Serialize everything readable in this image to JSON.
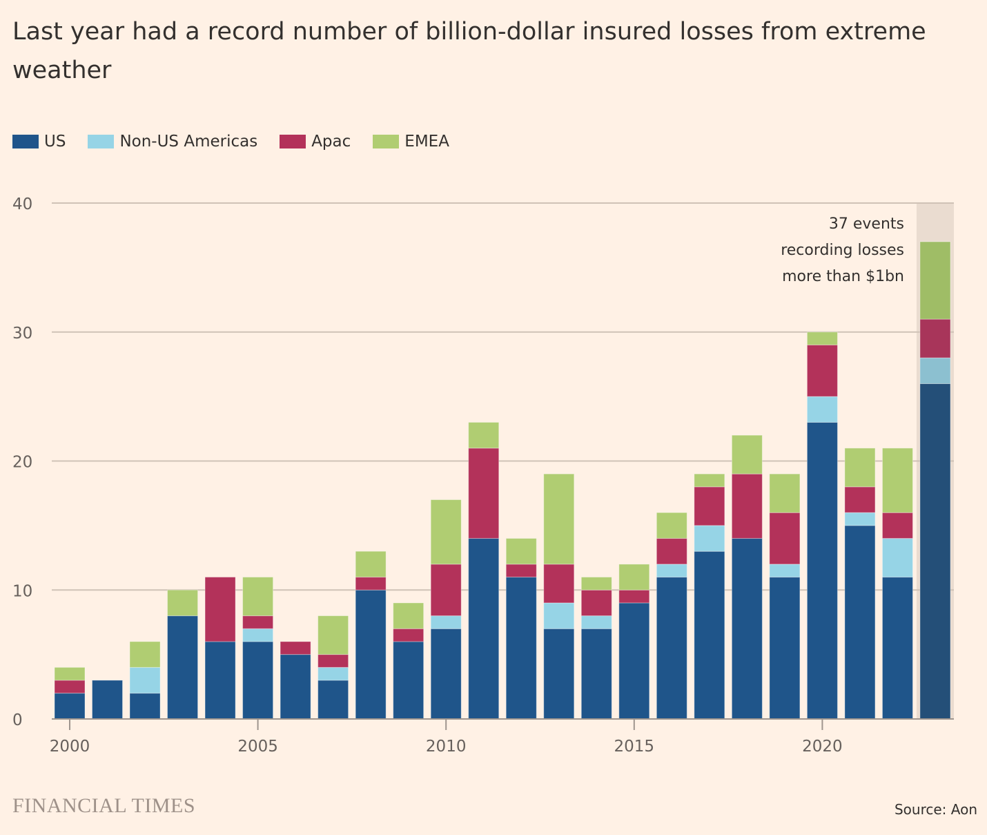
{
  "chart_data": {
    "type": "bar",
    "stacked": true,
    "title": "Last year had a record number of billion-dollar insured losses from extreme weather",
    "xlabel": "",
    "ylabel": "",
    "ylim": [
      0,
      40
    ],
    "yticks": [
      0,
      10,
      20,
      30,
      40
    ],
    "xticks": [
      "2000",
      "2005",
      "2010",
      "2015",
      "2020"
    ],
    "categories": [
      2000,
      2001,
      2002,
      2003,
      2004,
      2005,
      2006,
      2007,
      2008,
      2009,
      2010,
      2011,
      2012,
      2013,
      2014,
      2015,
      2016,
      2017,
      2018,
      2019,
      2020,
      2021,
      2022,
      2023
    ],
    "series": [
      {
        "name": "US",
        "color": "#1f558a",
        "values": [
          2,
          3,
          2,
          8,
          6,
          6,
          5,
          3,
          10,
          6,
          7,
          14,
          11,
          7,
          7,
          9,
          11,
          13,
          14,
          11,
          23,
          15,
          11,
          26
        ]
      },
      {
        "name": "Non-US Americas",
        "color": "#96d4e6",
        "values": [
          0,
          0,
          2,
          0,
          0,
          1,
          0,
          1,
          0,
          0,
          1,
          0,
          0,
          2,
          1,
          0,
          1,
          2,
          0,
          1,
          2,
          1,
          3,
          2
        ]
      },
      {
        "name": "Apac",
        "color": "#b3325a",
        "values": [
          1,
          0,
          0,
          0,
          5,
          1,
          1,
          1,
          1,
          1,
          4,
          7,
          1,
          3,
          2,
          1,
          2,
          3,
          5,
          4,
          4,
          2,
          2,
          3
        ]
      },
      {
        "name": "EMEA",
        "color": "#b0cd72",
        "values": [
          1,
          0,
          2,
          2,
          0,
          3,
          0,
          3,
          2,
          2,
          5,
          2,
          2,
          7,
          1,
          2,
          2,
          1,
          3,
          3,
          1,
          3,
          5,
          6
        ]
      }
    ],
    "highlight_category": 2023,
    "annotation": [
      "37 events",
      "recording losses",
      "more than $1bn"
    ],
    "legend_position": "top-left",
    "grid": true
  },
  "footer": {
    "brand": "FINANCIAL TIMES",
    "source": "Source: Aon"
  }
}
